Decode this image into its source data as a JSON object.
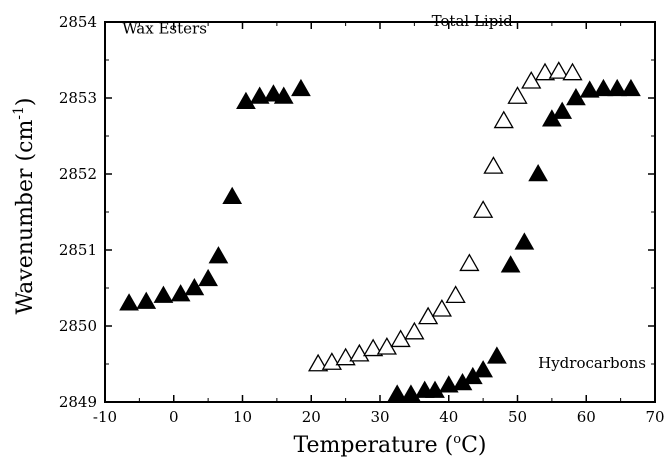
{
  "chart_data": {
    "type": "scatter",
    "title": "",
    "xlabel": "Temperature (",
    "xlabel_sup": "o",
    "xlabel_unit": "C)",
    "ylabel": "Wavenumber (cm",
    "ylabel_sup": "-1",
    "ylabel_close": ")",
    "xlim": [
      -10,
      70
    ],
    "ylim": [
      2849,
      2854
    ],
    "x_ticks": [
      -10,
      0,
      10,
      20,
      30,
      40,
      50,
      60,
      70
    ],
    "y_ticks": [
      2849,
      2850,
      2851,
      2852,
      2853,
      2854
    ],
    "grid": false,
    "series": [
      {
        "name": "Wax Esters",
        "marker": "filled-triangle",
        "color": "#000000",
        "points": [
          [
            -6.5,
            2850.3
          ],
          [
            -4,
            2850.32
          ],
          [
            -1.5,
            2850.4
          ],
          [
            1,
            2850.42
          ],
          [
            3,
            2850.5
          ],
          [
            5,
            2850.62
          ],
          [
            6.5,
            2850.92
          ],
          [
            8.5,
            2851.7
          ],
          [
            10.5,
            2852.95
          ],
          [
            12.5,
            2853.02
          ],
          [
            14.5,
            2853.05
          ],
          [
            16,
            2853.02
          ],
          [
            18.5,
            2853.12
          ]
        ]
      },
      {
        "name": "Total Lipid",
        "marker": "open-triangle",
        "color": "#000000",
        "points": [
          [
            21,
            2849.5
          ],
          [
            23,
            2849.52
          ],
          [
            25,
            2849.58
          ],
          [
            27,
            2849.63
          ],
          [
            29,
            2849.7
          ],
          [
            31,
            2849.72
          ],
          [
            33,
            2849.82
          ],
          [
            35,
            2849.92
          ],
          [
            37,
            2850.12
          ],
          [
            39,
            2850.22
          ],
          [
            41,
            2850.4
          ],
          [
            43,
            2850.82
          ],
          [
            45,
            2851.52
          ],
          [
            46.5,
            2852.1
          ],
          [
            48,
            2852.7
          ],
          [
            50,
            2853.02
          ],
          [
            52,
            2853.22
          ],
          [
            54,
            2853.33
          ],
          [
            56,
            2853.35
          ],
          [
            58,
            2853.33
          ]
        ]
      },
      {
        "name": "Hydrocarbons",
        "marker": "filled-triangle",
        "color": "#000000",
        "points": [
          [
            32.5,
            2849.1
          ],
          [
            34.5,
            2849.1
          ],
          [
            36.5,
            2849.15
          ],
          [
            38,
            2849.15
          ],
          [
            40,
            2849.22
          ],
          [
            42,
            2849.25
          ],
          [
            43.5,
            2849.33
          ],
          [
            45,
            2849.42
          ],
          [
            47,
            2849.6
          ],
          [
            49,
            2850.8
          ],
          [
            51,
            2851.1
          ],
          [
            53,
            2852.0
          ],
          [
            55,
            2852.72
          ],
          [
            56.5,
            2852.82
          ],
          [
            58.5,
            2853.0
          ],
          [
            60.5,
            2853.1
          ],
          [
            62.5,
            2853.12
          ],
          [
            64.5,
            2853.12
          ],
          [
            66.5,
            2853.12
          ]
        ]
      }
    ],
    "annotations": [
      {
        "text": "Wax Esters",
        "x": -7.5,
        "y": 2853.85
      },
      {
        "text": "Total Lipid",
        "x": 37.5,
        "y": 2853.95
      },
      {
        "text": "Hydrocarbons",
        "x": 53,
        "y": 2849.45
      }
    ]
  }
}
